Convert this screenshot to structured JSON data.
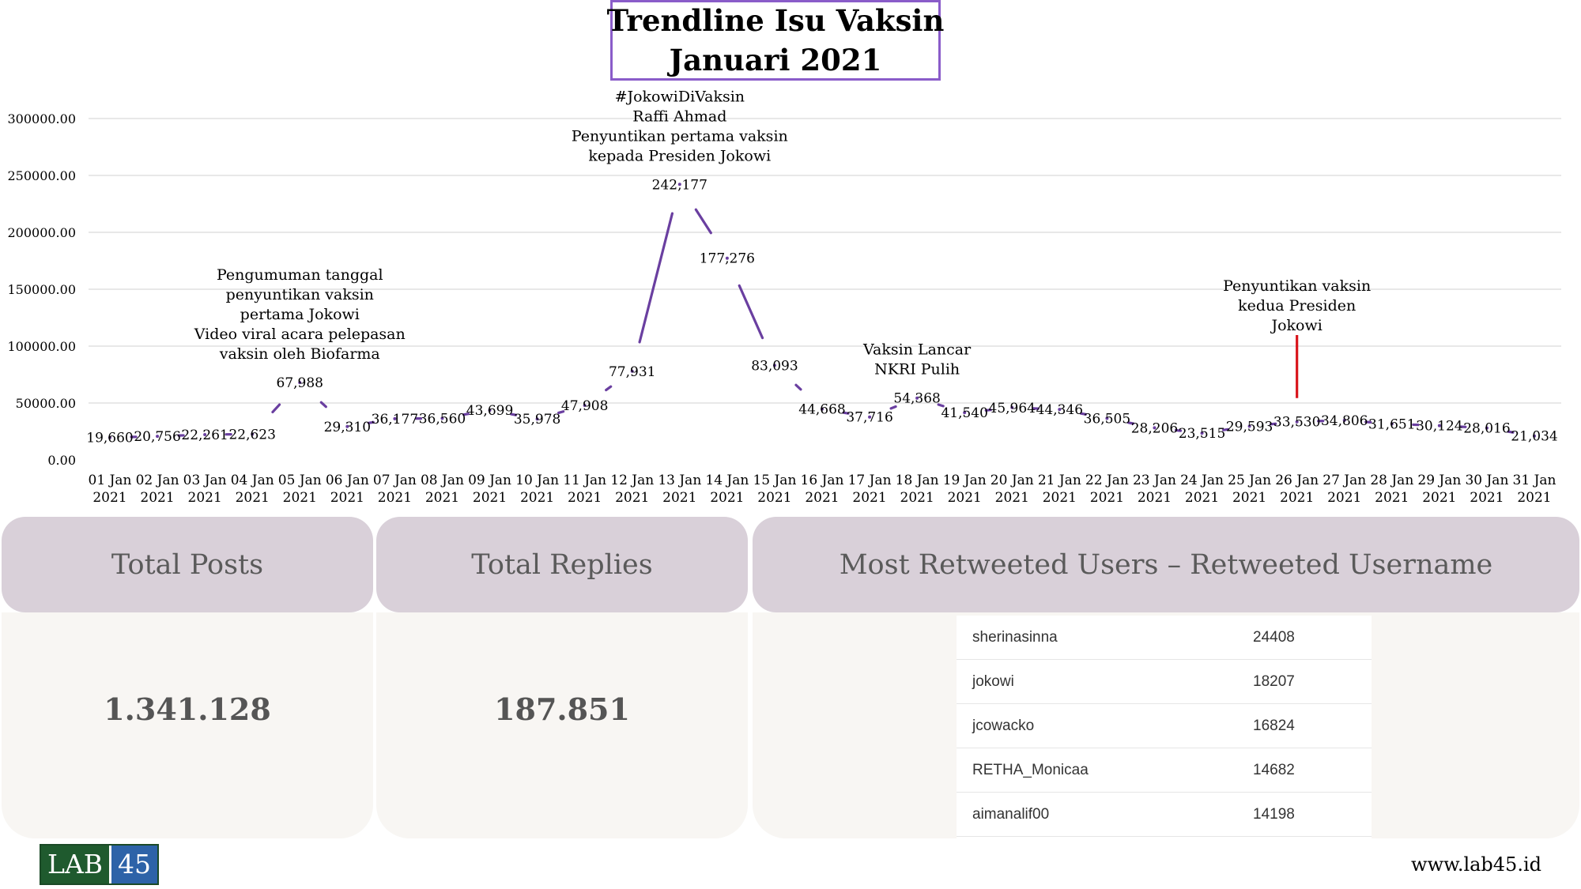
{
  "chart_data": {
    "type": "line",
    "title": [
      "Trendline Isu Vaksin",
      "Januari 2021"
    ],
    "categories": [
      "01 Jan 2021",
      "02 Jan 2021",
      "03 Jan 2021",
      "04 Jan 2021",
      "05 Jan 2021",
      "06 Jan 2021",
      "07 Jan 2021",
      "08 Jan 2021",
      "09 Jan 2021",
      "10 Jan 2021",
      "11 Jan 2021",
      "12 Jan 2021",
      "13 Jan 2021",
      "14 Jan 2021",
      "15 Jan 2021",
      "16 Jan 2021",
      "17 Jan 2021",
      "18 Jan 2021",
      "19 Jan 2021",
      "20 Jan 2021",
      "21 Jan 2021",
      "22 Jan 2021",
      "23 Jan 2021",
      "24 Jan 2021",
      "25 Jan 2021",
      "26 Jan 2021",
      "27 Jan 2021",
      "28 Jan 2021",
      "29 Jan 2021",
      "30 Jan 2021",
      "31 Jan 2021"
    ],
    "values": [
      19660,
      20756,
      22261,
      22623,
      67988,
      29310,
      36177,
      36560,
      43699,
      35978,
      47908,
      77931,
      242177,
      177276,
      83093,
      44668,
      37716,
      54368,
      41540,
      45964,
      44346,
      36505,
      28206,
      23515,
      29593,
      33530,
      34806,
      31651,
      30124,
      28016,
      21034
    ],
    "value_labels": [
      "19,660",
      "20,756",
      "22,261",
      "22,623",
      "67,988",
      "29,310",
      "36,177",
      "36,560",
      "43,699",
      "35,978",
      "47,908",
      "77,931",
      "242,177",
      "177,276",
      "83,093",
      "44,668",
      "37,716",
      "54,368",
      "41,540",
      "45,964",
      "44,346",
      "36,505",
      "28,206",
      "23,515",
      "29,593",
      "33,530",
      "34,806",
      "31,651",
      "30,124",
      "28,016",
      "21,034"
    ],
    "y_ticks": [
      "0.00",
      "50000.00",
      "100000.00",
      "150000.00",
      "200000.00",
      "250000.00",
      "300000.00"
    ],
    "ylim": [
      0,
      300000
    ],
    "grid": true,
    "line_color": "#6a3fa0",
    "annotations": [
      {
        "index": 4,
        "lines": [
          "Pengumuman tanggal",
          "penyuntikan vaksin",
          "pertama Jokowi",
          "Video viral acara pelepasan",
          "vaksin oleh Biofarma"
        ]
      },
      {
        "index": 12,
        "lines": [
          "#JokowiDiVaksin",
          "Raffi Ahmad",
          "Penyuntikan pertama vaksin",
          "kepada Presiden Jokowi"
        ]
      },
      {
        "index": 17,
        "lines": [
          "Vaksin Lancar",
          "NKRI Pulih"
        ]
      },
      {
        "index": 25,
        "lines": [
          "Penyuntikan vaksin",
          "kedua Presiden",
          "Jokowi"
        ],
        "marker_color": "#d9141b"
      }
    ]
  },
  "cards": {
    "total_posts": {
      "label": "Total Posts",
      "value": "1.341.128"
    },
    "total_replies": {
      "label": "Total Replies",
      "value": "187.851"
    },
    "most_retweeted": {
      "label": "Most Retweeted Users – Retweeted Username",
      "rows": [
        {
          "user": "sherinasinna",
          "count": "24408"
        },
        {
          "user": "jokowi",
          "count": "18207"
        },
        {
          "user": "jcowacko",
          "count": "16824"
        },
        {
          "user": "RETHA_Monicaa",
          "count": "14682"
        },
        {
          "user": "aimanalif00",
          "count": "14198"
        }
      ]
    }
  },
  "footer": {
    "logo_lab": "LAB",
    "logo_num": "45",
    "website": "www.lab45.id"
  },
  "colors": {
    "header_bg": "#d9d0d9",
    "card_bg": "#f8f6f3",
    "title_border": "#8a5cc9"
  }
}
